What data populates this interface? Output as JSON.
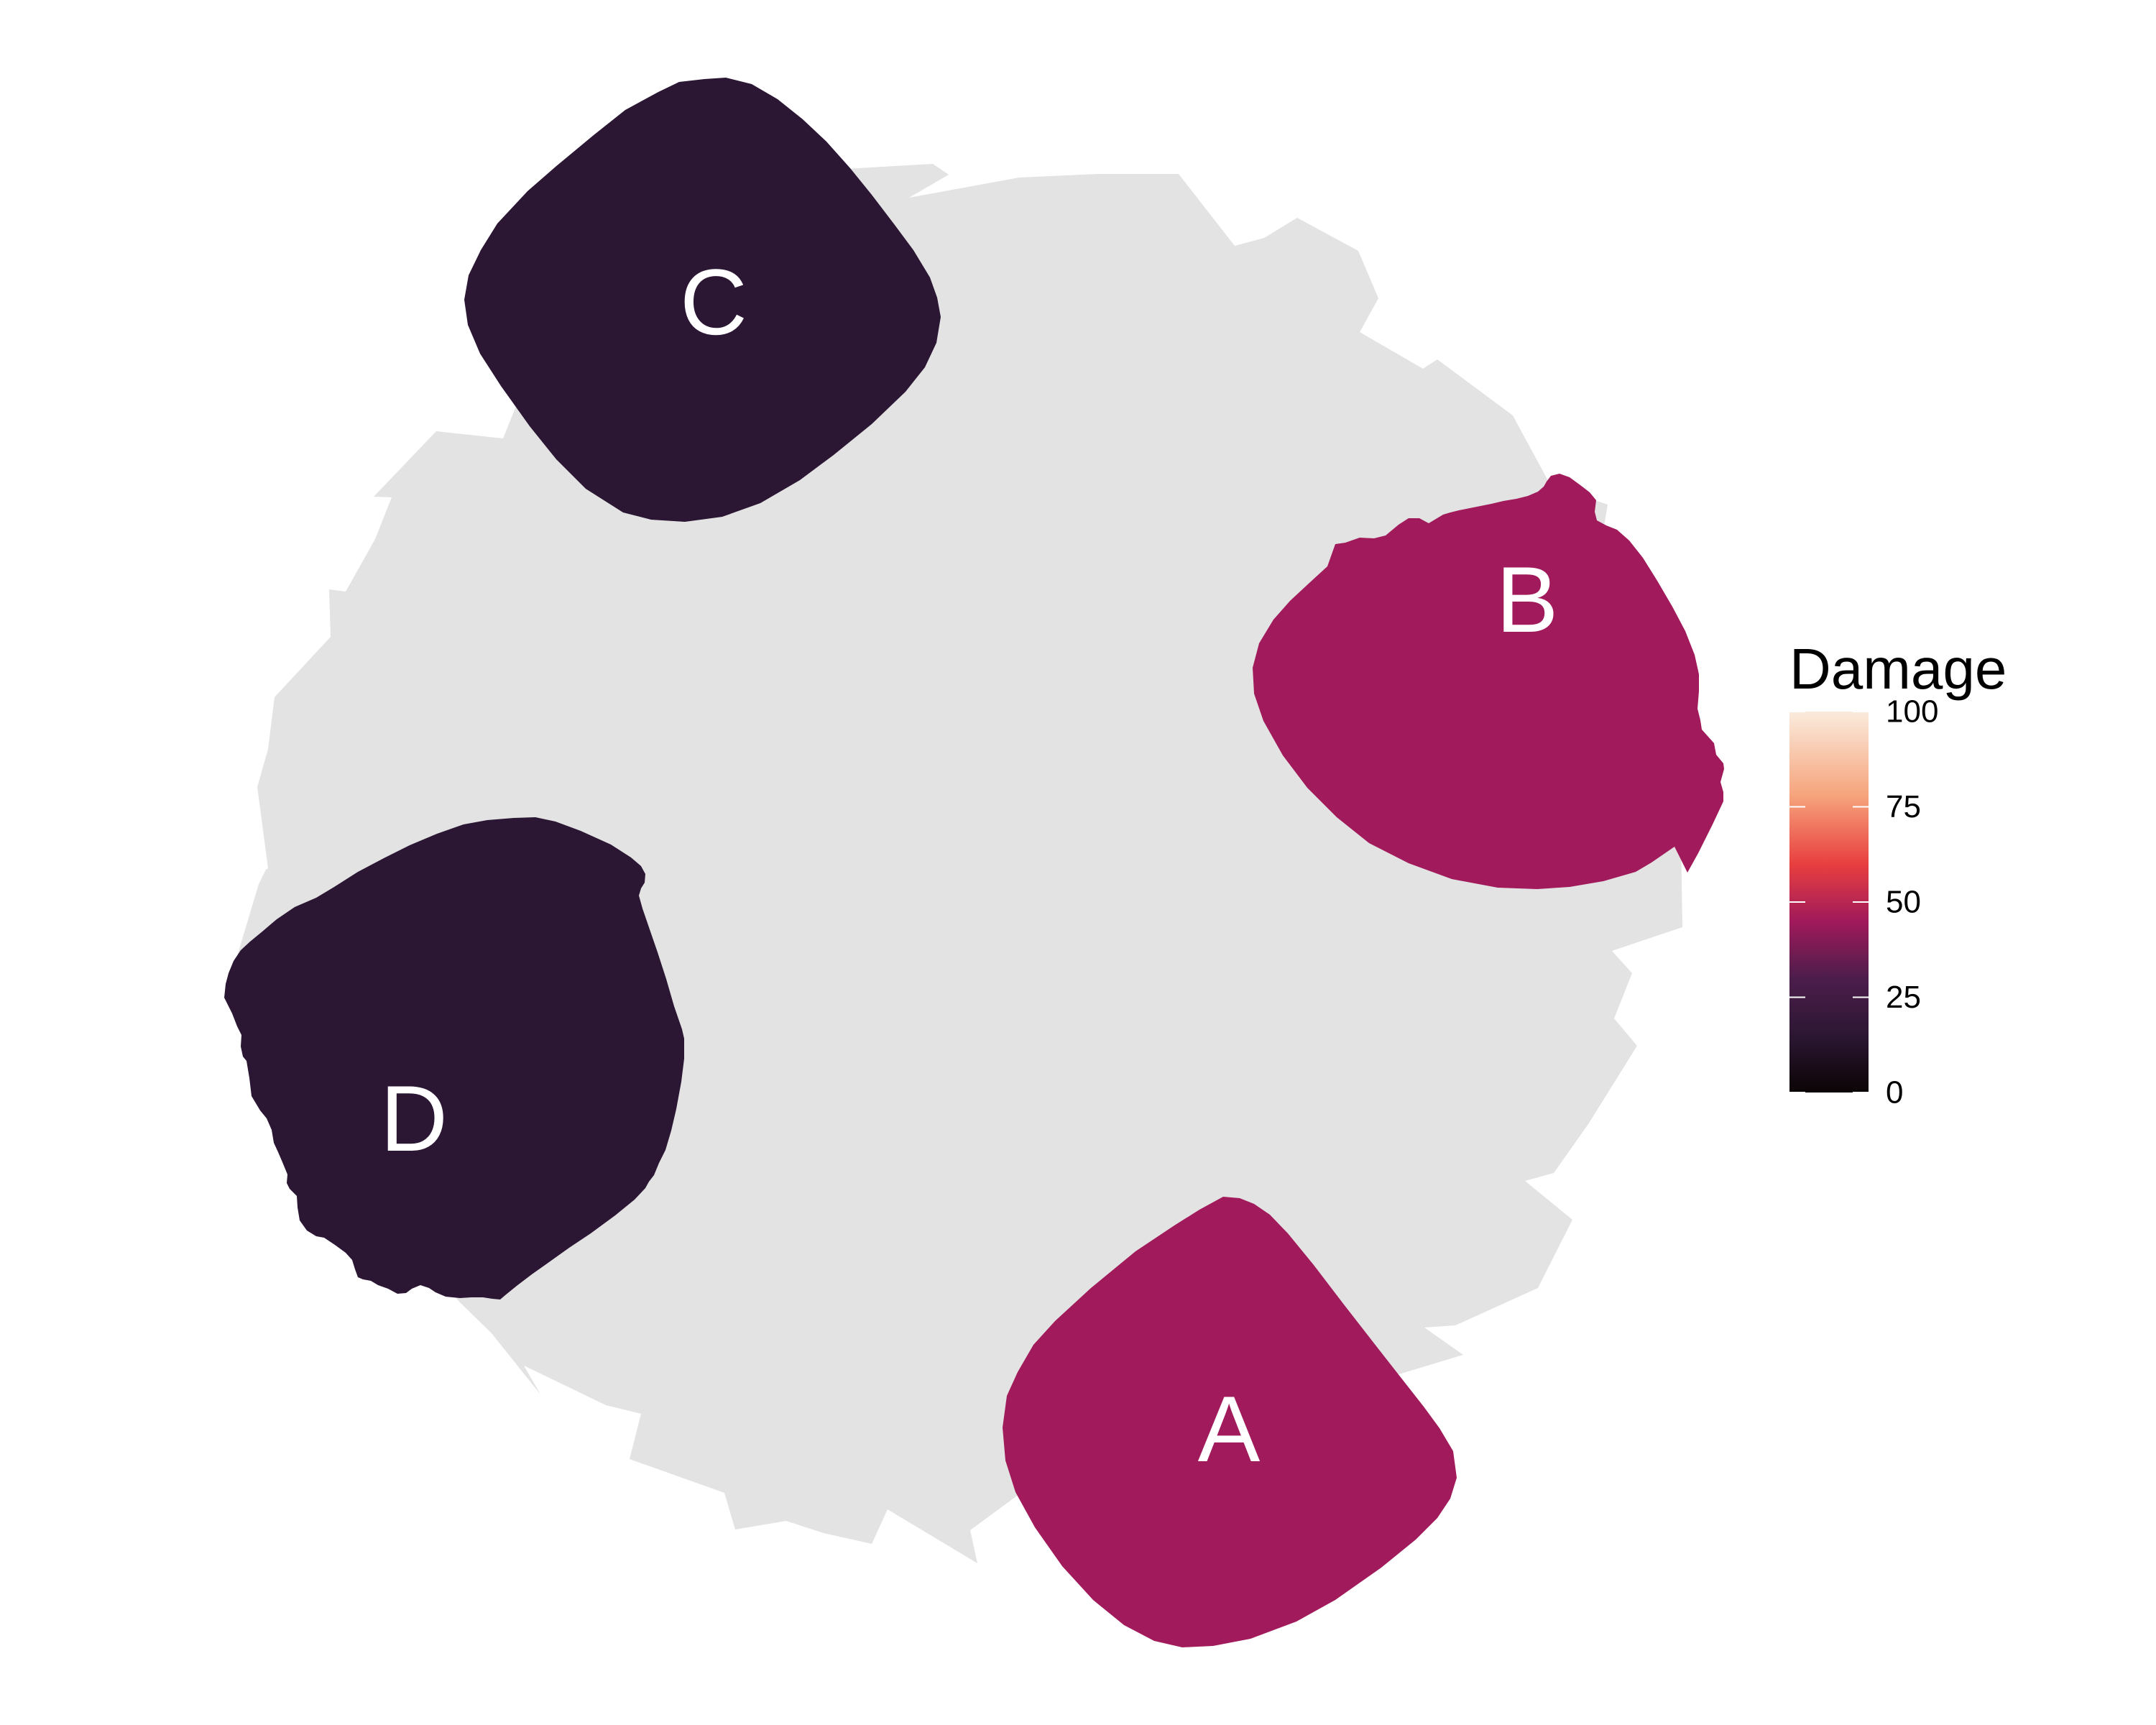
{
  "chart_data": {
    "type": "heatmap",
    "title": "",
    "regions": [
      {
        "label": "A",
        "value": 38
      },
      {
        "label": "B",
        "value": 38
      },
      {
        "label": "C",
        "value": 15
      },
      {
        "label": "D",
        "value": 15
      }
    ],
    "legend": {
      "title": "Damage",
      "ticks": [
        "0",
        "25",
        "50",
        "75",
        "100"
      ],
      "range": [
        0,
        100
      ],
      "placement": "right"
    },
    "colors": {
      "background_shape": "#e3e3e3",
      "label_text": "#ffffff",
      "scale": [
        "#0b0405",
        "#2c1733",
        "#4c1d4b",
        "#a11a5b",
        "#e83f3f",
        "#f6a47c",
        "#faebdd"
      ]
    }
  }
}
